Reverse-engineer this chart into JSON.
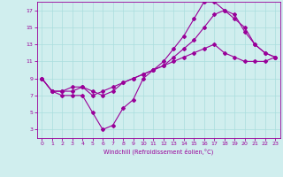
{
  "background_color": "#d0eeee",
  "line_color": "#990099",
  "grid_color": "#aadddd",
  "xlabel": "Windchill (Refroidissement éolien,°C)",
  "xlim": [
    -0.5,
    23.5
  ],
  "ylim": [
    2,
    18
  ],
  "yticks": [
    3,
    5,
    7,
    9,
    11,
    13,
    15,
    17
  ],
  "xticks": [
    0,
    1,
    2,
    3,
    4,
    5,
    6,
    7,
    8,
    9,
    10,
    11,
    12,
    13,
    14,
    15,
    16,
    17,
    18,
    19,
    20,
    21,
    22,
    23
  ],
  "series": [
    {
      "x": [
        0,
        1,
        2,
        3,
        4,
        5,
        6,
        7,
        8,
        9,
        10,
        11,
        12,
        13,
        14,
        15,
        16,
        17,
        18,
        19,
        20,
        21,
        22,
        23
      ],
      "y": [
        9,
        7.5,
        7,
        7,
        7,
        5,
        3,
        3.5,
        5.5,
        6.5,
        9,
        10,
        11,
        12.5,
        14,
        16,
        18,
        18,
        17,
        16.5,
        14.5,
        13,
        12,
        11.5
      ]
    },
    {
      "x": [
        0,
        1,
        2,
        3,
        4,
        5,
        6,
        7,
        8,
        9,
        10,
        11,
        12,
        13,
        14,
        15,
        16,
        17,
        18,
        19,
        20,
        21,
        22,
        23
      ],
      "y": [
        9,
        7.5,
        7.5,
        8,
        8,
        7.5,
        7,
        7.5,
        8.5,
        9,
        9.5,
        10,
        10.5,
        11,
        11.5,
        12,
        12.5,
        13,
        12,
        11.5,
        11,
        11,
        11,
        11.5
      ]
    },
    {
      "x": [
        0,
        1,
        2,
        3,
        4,
        5,
        6,
        7,
        8,
        9,
        10,
        11,
        12,
        13,
        14,
        15,
        16,
        17,
        18,
        19,
        20,
        21,
        22,
        23
      ],
      "y": [
        9,
        7.5,
        7.5,
        7.5,
        8,
        7,
        7.5,
        8,
        8.5,
        9,
        9.5,
        10,
        10.5,
        11.5,
        12.5,
        13.5,
        15,
        16.5,
        17,
        16,
        15,
        13,
        12,
        11.5
      ]
    }
  ],
  "figsize": [
    3.2,
    2.0
  ],
  "dpi": 100
}
